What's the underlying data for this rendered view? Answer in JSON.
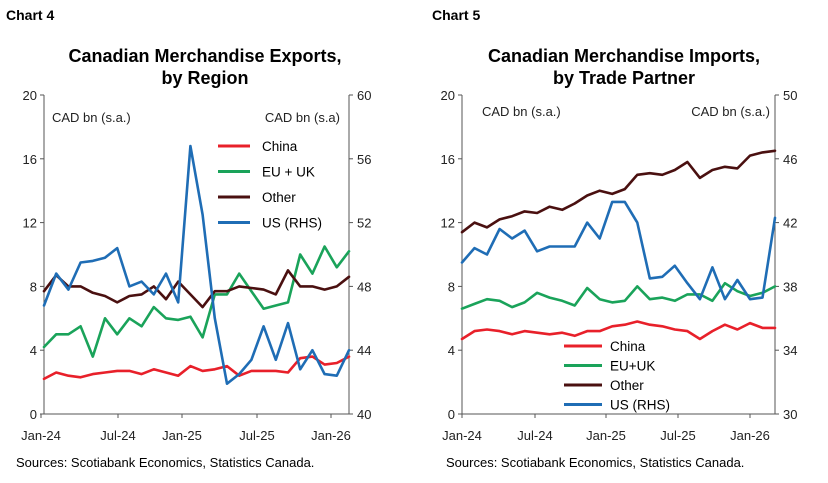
{
  "charts": [
    {
      "label": "Chart 4",
      "title_line1": "Canadian Merchandise Exports,",
      "title_line2": "by Region",
      "source": "Sources: Scotiabank Economics, Statistics Canada.",
      "chart_data": {
        "type": "line",
        "title": "Canadian Merchandise Exports, by Region",
        "ylabel_left": "CAD bn (s.a.)",
        "ylabel_right": "CAD bn (s.a)",
        "ylim_left": [
          0,
          20
        ],
        "ylim_right": [
          40,
          60
        ],
        "yticks_left": [
          0,
          4,
          8,
          12,
          16,
          20
        ],
        "yticks_right": [
          40,
          44,
          48,
          52,
          56,
          60
        ],
        "x_ticks": [
          "Jan-24",
          "Jul-24",
          "Jan-25",
          "Jul-25",
          "Jan-26"
        ],
        "x_start": "2024-01",
        "x_end": "2026-02",
        "grid": false,
        "legend_position": "top-right",
        "series": [
          {
            "name": "China",
            "axis": "left",
            "color": "#e8202a",
            "values": [
              2.2,
              2.6,
              2.4,
              2.3,
              2.5,
              2.6,
              2.7,
              2.7,
              2.5,
              2.8,
              2.6,
              2.4,
              3.0,
              2.7,
              2.8,
              3.0,
              2.4,
              2.7,
              2.7,
              2.7,
              2.6,
              3.5,
              3.6,
              3.1,
              3.2,
              3.6
            ]
          },
          {
            "name": "EU + UK",
            "axis": "left",
            "color": "#1aa35a",
            "values": [
              4.2,
              5.0,
              5.0,
              5.5,
              3.6,
              6.0,
              5.0,
              6.0,
              5.5,
              6.7,
              6.0,
              5.9,
              6.1,
              4.8,
              7.5,
              7.5,
              8.8,
              7.7,
              6.6,
              6.8,
              7.0,
              10.0,
              8.8,
              10.5,
              9.2,
              10.2
            ]
          },
          {
            "name": "Other",
            "axis": "left",
            "color": "#4a1010",
            "values": [
              7.7,
              8.7,
              8.0,
              8.0,
              7.6,
              7.4,
              7.0,
              7.4,
              7.5,
              8.0,
              7.2,
              8.3,
              7.5,
              6.7,
              7.7,
              7.7,
              8.0,
              7.9,
              7.8,
              7.5,
              9.0,
              8.0,
              8.0,
              7.8,
              8.0,
              8.6
            ]
          },
          {
            "name": "US (RHS)",
            "axis": "right",
            "color": "#1f6db5",
            "values": [
              46.8,
              48.8,
              47.8,
              49.5,
              49.6,
              49.8,
              50.4,
              48.0,
              48.3,
              47.5,
              48.8,
              47.0,
              56.8,
              52.5,
              46.0,
              41.9,
              42.5,
              43.4,
              45.5,
              43.4,
              45.7,
              42.8,
              44.0,
              42.5,
              42.4,
              44.0
            ]
          }
        ]
      }
    },
    {
      "label": "Chart 5",
      "title_line1": "Canadian Merchandise Imports,",
      "title_line2": "by Trade Partner",
      "source": "Sources: Scotiabank Economics, Statistics Canada.",
      "chart_data": {
        "type": "line",
        "title": "Canadian Merchandise Imports, by Trade Partner",
        "ylabel_left": "CAD bn (s.a.)",
        "ylabel_right": "CAD bn (s.a.)",
        "ylim_left": [
          0,
          20
        ],
        "ylim_right": [
          30,
          50
        ],
        "yticks_left": [
          0,
          4,
          8,
          12,
          16,
          20
        ],
        "yticks_right": [
          30,
          34,
          38,
          42,
          46,
          50
        ],
        "x_ticks": [
          "Jan-24",
          "Jul-24",
          "Jan-25",
          "Jul-25",
          "Jan-26"
        ],
        "x_start": "2024-01",
        "x_end": "2026-02",
        "grid": false,
        "legend_position": "bottom-center",
        "series": [
          {
            "name": "China",
            "axis": "left",
            "color": "#e8202a",
            "values": [
              4.7,
              5.2,
              5.3,
              5.2,
              5.0,
              5.2,
              5.1,
              5.0,
              5.1,
              4.9,
              5.2,
              5.2,
              5.5,
              5.6,
              5.8,
              5.6,
              5.5,
              5.3,
              5.2,
              4.7,
              5.2,
              5.6,
              5.3,
              5.7,
              5.4,
              5.4
            ]
          },
          {
            "name": "EU+UK",
            "axis": "left",
            "color": "#1aa35a",
            "values": [
              6.6,
              6.9,
              7.2,
              7.1,
              6.7,
              7.0,
              7.6,
              7.3,
              7.1,
              6.8,
              7.9,
              7.2,
              7.0,
              7.1,
              8.0,
              7.2,
              7.3,
              7.1,
              7.5,
              7.5,
              7.1,
              8.2,
              7.7,
              7.4,
              7.6,
              8.0
            ]
          },
          {
            "name": "Other",
            "axis": "left",
            "color": "#4a1010",
            "values": [
              11.4,
              12.0,
              11.7,
              12.2,
              12.4,
              12.7,
              12.6,
              13.0,
              12.8,
              13.2,
              13.7,
              14.0,
              13.8,
              14.1,
              15.0,
              15.1,
              15.0,
              15.3,
              15.8,
              14.8,
              15.3,
              15.5,
              15.4,
              16.2,
              16.4,
              16.5
            ]
          },
          {
            "name": "US (RHS)",
            "axis": "right",
            "color": "#1f6db5",
            "values": [
              39.5,
              40.4,
              40.0,
              41.6,
              41.0,
              41.5,
              40.2,
              40.5,
              40.5,
              40.5,
              42.0,
              41.0,
              43.3,
              43.3,
              42.0,
              38.5,
              38.6,
              39.3,
              38.2,
              37.2,
              39.2,
              37.2,
              38.4,
              37.2,
              37.3,
              42.3
            ]
          }
        ]
      }
    }
  ]
}
